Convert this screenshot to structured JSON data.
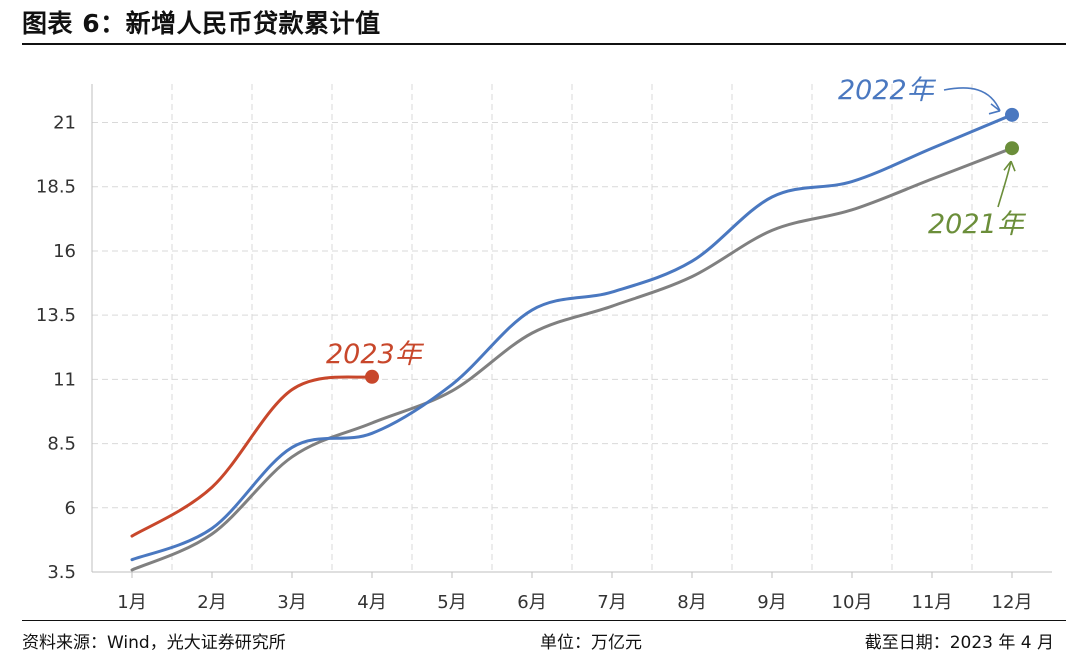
{
  "header": {
    "title": "图表 6：新增人民币贷款累计值"
  },
  "footer": {
    "source": "资料来源：Wind，光大证券研究所",
    "unit": "单位：万亿元",
    "date": "截至日期：2023 年 4 月"
  },
  "colors": {
    "y2023": "#C8472B",
    "y2022": "#4A78C0",
    "y2021": "#808080",
    "label2021": "#6B8E3A",
    "grid": "#D9D9D9"
  },
  "chart_data": {
    "type": "line",
    "categories": [
      "1月",
      "2月",
      "3月",
      "4月",
      "5月",
      "6月",
      "7月",
      "8月",
      "9月",
      "10月",
      "11月",
      "12月"
    ],
    "yticks": [
      "3.5",
      "6",
      "8.5",
      "11",
      "13.5",
      "16",
      "18.5",
      "21"
    ],
    "ylim": [
      3.5,
      22.5
    ],
    "grid": true,
    "series": [
      {
        "name": "2023年",
        "key": "y2023",
        "values": [
          4.9,
          6.8,
          10.6,
          11.1,
          null,
          null,
          null,
          null,
          null,
          null,
          null,
          null
        ],
        "end_marker": true
      },
      {
        "name": "2022年",
        "key": "y2022",
        "values": [
          3.98,
          5.2,
          8.35,
          8.9,
          10.8,
          13.7,
          14.4,
          15.6,
          18.1,
          18.7,
          20.0,
          21.3
        ],
        "end_marker": true
      },
      {
        "key": "y2021",
        "values": [
          3.58,
          4.98,
          7.98,
          9.3,
          10.55,
          12.8,
          13.85,
          15.0,
          16.8,
          17.6,
          18.8,
          20.0
        ],
        "end_marker": true
      }
    ],
    "annotations": {
      "label2023": "2023年",
      "label2022": "2022年",
      "label2021": "2021年"
    }
  }
}
